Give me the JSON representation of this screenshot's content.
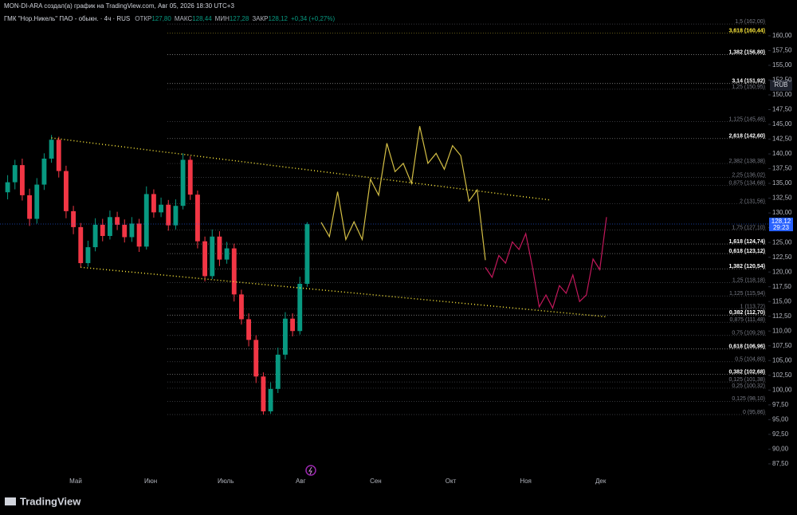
{
  "chart_data": {
    "type": "candlestick",
    "attribution": "MON-DI-ARA создал(а) график на TradingView.com, Авг 05, 2026 18:30 UTC+3",
    "title": "ГМК \"Нор.Никель\" ПАО - обыкн. · 4ч · RUS",
    "legend_values": [
      {
        "label": "ОТКР",
        "value": "127,80"
      },
      {
        "label": "МАКС",
        "value": "128,44"
      },
      {
        "label": "МИН",
        "value": "127,28"
      },
      {
        "label": "ЗАКР",
        "value": "128,12"
      }
    ],
    "change": "+0,34 (+0,27%)",
    "currency": "RUB",
    "brand": "TradingView",
    "categories": [
      "Май",
      "Июн",
      "Июль",
      "Авг",
      "Сен",
      "Окт",
      "Ноя",
      "Дек"
    ],
    "ylim": [
      86,
      163.5
    ],
    "yticks": [
      {
        "value": 160,
        "label": "160,00"
      },
      {
        "value": 157.5,
        "label": "157,50"
      },
      {
        "value": 155,
        "label": "155,00"
      },
      {
        "value": 152.5,
        "label": "152,50"
      },
      {
        "value": 150,
        "label": "150,00"
      },
      {
        "value": 147.5,
        "label": "147,50"
      },
      {
        "value": 145,
        "label": "145,00"
      },
      {
        "value": 142.5,
        "label": "142,50"
      },
      {
        "value": 140,
        "label": "140,00"
      },
      {
        "value": 137.5,
        "label": "137,50"
      },
      {
        "value": 135,
        "label": "135,00"
      },
      {
        "value": 132.5,
        "label": "132,50"
      },
      {
        "value": 130,
        "label": "130,00"
      },
      {
        "value": 127.5,
        "label": "127,50"
      },
      {
        "value": 125,
        "label": "125,00"
      },
      {
        "value": 122.5,
        "label": "122,50"
      },
      {
        "value": 120,
        "label": "120,00"
      },
      {
        "value": 117.5,
        "label": "117,50"
      },
      {
        "value": 115,
        "label": "115,00"
      },
      {
        "value": 112.5,
        "label": "112,50"
      },
      {
        "value": 110,
        "label": "110,00"
      },
      {
        "value": 107.5,
        "label": "107,50"
      },
      {
        "value": 105,
        "label": "105,00"
      },
      {
        "value": 102.5,
        "label": "102,50"
      },
      {
        "value": 100,
        "label": "100,00"
      },
      {
        "value": 97.5,
        "label": "97,50"
      },
      {
        "value": 95,
        "label": "95,00"
      },
      {
        "value": 92.5,
        "label": "92,50"
      },
      {
        "value": 90,
        "label": "90,00"
      },
      {
        "value": 87.5,
        "label": "87,50"
      }
    ],
    "up_color": "#089981",
    "down_color": "#f23645",
    "open": [
      133.5,
      135.2,
      138.1,
      133.0,
      129.0,
      134.8,
      139.2,
      142.4,
      137.1,
      130.3,
      127.6,
      121.5,
      124.2,
      128.0,
      126.1,
      129.3,
      128.0,
      125.9,
      128.2,
      124.3,
      133.2,
      130.1,
      131.4,
      127.9,
      131.2,
      139.0,
      133.1,
      125.2,
      119.3,
      126.0,
      122.1,
      124.0,
      116.2,
      112.0,
      108.5,
      102.3,
      96.4,
      100.2,
      106.0,
      112.1,
      110.0,
      118.0
    ],
    "high": [
      136.4,
      139.0,
      139.2,
      134.1,
      135.9,
      140.1,
      143.2,
      142.9,
      138.0,
      131.2,
      128.3,
      125.3,
      129.1,
      129.0,
      130.4,
      130.2,
      128.9,
      129.3,
      129.0,
      134.5,
      134.0,
      132.6,
      132.2,
      132.3,
      140.1,
      139.6,
      133.8,
      126.0,
      127.2,
      126.9,
      125.1,
      124.8,
      117.0,
      113.0,
      109.3,
      103.0,
      101.3,
      107.2,
      113.2,
      113.0,
      119.2,
      128.44
    ],
    "low": [
      132.3,
      134.0,
      132.1,
      127.8,
      128.2,
      133.9,
      138.5,
      136.0,
      129.1,
      126.4,
      120.8,
      120.9,
      123.5,
      125.2,
      125.5,
      127.1,
      125.0,
      125.1,
      123.4,
      123.8,
      129.2,
      129.3,
      127.0,
      127.2,
      130.6,
      132.2,
      124.0,
      118.4,
      118.8,
      121.0,
      121.4,
      115.0,
      111.1,
      107.4,
      101.2,
      95.86,
      96.0,
      99.5,
      105.2,
      109.1,
      109.4,
      117.5
    ],
    "close": [
      135.2,
      138.1,
      133.0,
      129.0,
      134.8,
      139.2,
      142.4,
      137.1,
      130.3,
      127.6,
      121.5,
      124.2,
      128.0,
      126.1,
      129.3,
      128.0,
      125.9,
      128.2,
      124.3,
      133.2,
      130.1,
      131.4,
      127.9,
      131.2,
      139.0,
      133.1,
      125.2,
      119.3,
      126.0,
      122.1,
      124.0,
      116.2,
      112.0,
      108.5,
      102.3,
      96.4,
      100.2,
      106.0,
      112.1,
      110.0,
      118.0,
      128.1
    ],
    "last_price": {
      "value": 128.12,
      "label": "128,12"
    },
    "countdown": "29:23",
    "trendlines": [
      {
        "color": "#ffeb3b",
        "values": [
          142.7,
          132.2
        ]
      },
      {
        "color": "#ffeb3b",
        "values": [
          120.8,
          112.4
        ]
      }
    ],
    "projections": [
      {
        "color": "#d4bf45",
        "values": [
          128.4,
          126.0,
          133.6,
          125.5,
          128.5,
          125.5,
          135.7,
          133.0,
          141.8,
          137.0,
          138.4,
          135.0,
          144.7,
          138.4,
          140.1,
          137.4,
          141.4,
          139.7,
          132.0,
          133.9,
          122.0
        ]
      },
      {
        "color": "#c2185b",
        "values": [
          120.8,
          119.1,
          122.8,
          121.5,
          125.1,
          123.8,
          126.5,
          120.8,
          114.1,
          116.1,
          113.9,
          117.7,
          116.4,
          119.5,
          115.0,
          116.1,
          122.2,
          120.4,
          129.3
        ]
      }
    ],
    "fib_levels": [
      {
        "label": "1,5 (162,00)",
        "value": 162.0,
        "color": "#787b86",
        "bold": false
      },
      {
        "label": "3,618 (160,44)",
        "value": 160.44,
        "color": "#ffeb3b",
        "bold": true
      },
      {
        "label": "1,382 (156,80)",
        "value": 156.8,
        "color": "#ffffff",
        "bold": true
      },
      {
        "label": "3,14 (151,92)",
        "value": 151.92,
        "color": "#ffffff",
        "bold": true
      },
      {
        "label": "1,25 (150,95)",
        "value": 150.95,
        "color": "#787b86",
        "bold": false
      },
      {
        "label": "1,125 (145,46)",
        "value": 145.46,
        "color": "#787b86",
        "bold": false
      },
      {
        "label": "2,618 (142,60)",
        "value": 142.6,
        "color": "#ffffff",
        "bold": true
      },
      {
        "label": "2,382 (138,38)",
        "value": 138.38,
        "color": "#787b86",
        "bold": false
      },
      {
        "label": "2,25 (136,02)",
        "value": 136.02,
        "color": "#787b86",
        "bold": false
      },
      {
        "label": "0,875 (134,68)",
        "value": 134.68,
        "color": "#787b86",
        "bold": false
      },
      {
        "label": "2 (131,56)",
        "value": 131.56,
        "color": "#787b86",
        "bold": false
      },
      {
        "label": "1,75 (127,10)",
        "value": 127.1,
        "color": "#787b86",
        "bold": false
      },
      {
        "label": "1,618 (124,74)",
        "value": 124.74,
        "color": "#ffffff",
        "bold": true
      },
      {
        "label": "0,618 (123,12)",
        "value": 123.12,
        "color": "#ffffff",
        "bold": true
      },
      {
        "label": "1,382 (120,54)",
        "value": 120.54,
        "color": "#ffffff",
        "bold": true
      },
      {
        "label": "1,25 (118,18)",
        "value": 118.18,
        "color": "#787b86",
        "bold": false
      },
      {
        "label": "1,125 (115,94)",
        "value": 115.94,
        "color": "#787b86",
        "bold": false
      },
      {
        "label": "1 (113,72)",
        "value": 113.72,
        "color": "#787b86",
        "bold": false
      },
      {
        "label": "0,382 (112,70)",
        "value": 112.7,
        "color": "#ffffff",
        "bold": true
      },
      {
        "label": "0,875 (111,48)",
        "value": 111.48,
        "color": "#787b86",
        "bold": false
      },
      {
        "label": "0,75 (109,26)",
        "value": 109.26,
        "color": "#787b86",
        "bold": false
      },
      {
        "label": "0,618 (106,96)",
        "value": 106.96,
        "color": "#ffffff",
        "bold": true
      },
      {
        "label": "0,5 (104,80)",
        "value": 104.8,
        "color": "#787b86",
        "bold": false
      },
      {
        "label": "0,382 (102,68)",
        "value": 102.68,
        "color": "#ffffff",
        "bold": true
      },
      {
        "label": "0,125 (101,38)",
        "value": 101.38,
        "color": "#787b86",
        "bold": false
      },
      {
        "label": "0,25 (100,32)",
        "value": 100.32,
        "color": "#787b86",
        "bold": false
      },
      {
        "label": "0,125 (98,10)",
        "value": 98.1,
        "color": "#787b86",
        "bold": false
      },
      {
        "label": "0 (95,86)",
        "value": 95.86,
        "color": "#787b86",
        "bold": false
      }
    ]
  }
}
